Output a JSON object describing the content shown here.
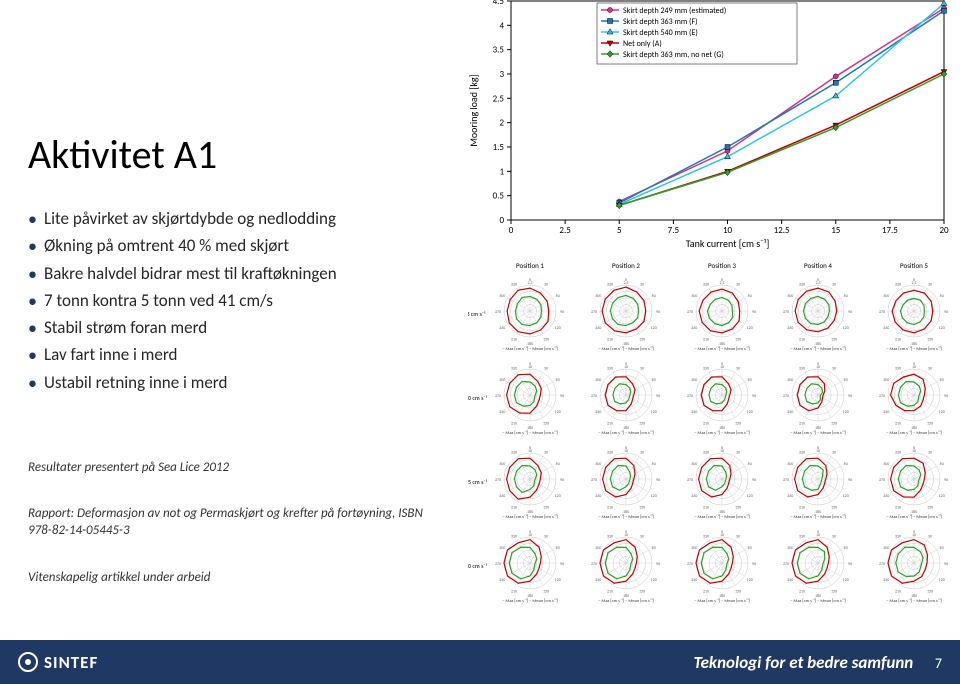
{
  "title": "Aktivitet A1",
  "bullets": [
    "Lite påvirket av skjørtdybde og nedlodding",
    "Økning på omtrent 40 % med skjørt",
    "Bakre halvdel bidrar mest til kraftøkningen",
    "7 tonn kontra 5 tonn ved 41 cm/s",
    "Stabil strøm foran merd",
    "Lav fart inne i merd",
    "Ustabil retning inne i merd"
  ],
  "notes": [
    "Resultater presentert på Sea Lice 2012",
    "Rapport: Deformasjon av not og Permaskjørt og krefter på fortøyning, ISBN 978-82-14-05445-3",
    "Vitenskapelig artikkel under arbeid"
  ],
  "footer": {
    "brand": "SINTEF",
    "tagline": "Teknologi for et bedre samfunn",
    "page": "7"
  },
  "chart": {
    "type": "line",
    "xlabel": "Tank current [cm s⁻¹]",
    "ylabel": "Mooring load [kg]",
    "xlim": [
      0,
      20
    ],
    "ylim": [
      0,
      4.5
    ],
    "xticks": [
      0,
      2.5,
      5,
      7.5,
      10,
      12.5,
      15,
      17.5,
      20
    ],
    "yticks": [
      0,
      0.5,
      1,
      1.5,
      2,
      2.5,
      3,
      3.5,
      4,
      4.5
    ],
    "tick_fontsize": 9,
    "label_fontsize": 10,
    "grid_color": "none",
    "axis_color": "#000000",
    "marker_size": 5,
    "legend_position": "top-right-inside",
    "legend_fontsize": 8,
    "series": [
      {
        "label": "Skirt depth 249 mm (estimated)",
        "color": "#d63384",
        "marker": "circle",
        "x": [
          5,
          10,
          15,
          20
        ],
        "y": [
          0.38,
          1.42,
          2.95,
          4.35
        ]
      },
      {
        "label": "Skirt depth 363 mm (F)",
        "color": "#1f77b4",
        "marker": "square",
        "x": [
          5,
          10,
          15,
          20
        ],
        "y": [
          0.35,
          1.5,
          2.82,
          4.3
        ]
      },
      {
        "label": "Skirt depth 540 mm (E)",
        "color": "#2dc3e8",
        "marker": "triangle",
        "x": [
          5,
          10,
          15,
          20
        ],
        "y": [
          0.32,
          1.3,
          2.55,
          4.45
        ]
      },
      {
        "label": "Net only (A)",
        "color": "#c00000",
        "marker": "triangle-down",
        "x": [
          5,
          10,
          15,
          20
        ],
        "y": [
          0.3,
          1.0,
          1.95,
          3.05
        ]
      },
      {
        "label": "Skirt depth 363 mm, no net (G)",
        "color": "#2ca02c",
        "marker": "diamond",
        "x": [
          5,
          10,
          15,
          20
        ],
        "y": [
          0.3,
          0.98,
          1.9,
          3.0
        ]
      }
    ]
  },
  "polars": {
    "cols": [
      "Position 1",
      "Position 2",
      "Position 3",
      "Position 4",
      "Position 5"
    ],
    "row_labels": [
      "3 cm s⁻¹",
      "10 cm s⁻¹",
      "15 cm s⁻¹",
      "20 cm s⁻¹"
    ],
    "caption": "– Max [cm s⁻¹]   – Mean [cm s⁻¹]",
    "header_fontsize": 7,
    "tick_fontsize": 5,
    "max_color": "#c00000",
    "mean_color": "#2ca02c",
    "ring_color": "#c8c8c8",
    "angles_deg": [
      0,
      30,
      60,
      90,
      120,
      150,
      180,
      210,
      240,
      270,
      300,
      330
    ],
    "rings": [
      2.5,
      5,
      7.5,
      10
    ],
    "cells": [
      [
        {
          "rmax": 2.5,
          "max": [
            2.2,
            2.0,
            1.9,
            1.8,
            2.0,
            2.1,
            2.2,
            2.3,
            2.3,
            2.2,
            2.2,
            2.3
          ],
          "mean": [
            1.4,
            1.3,
            1.2,
            1.1,
            1.2,
            1.3,
            1.4,
            1.5,
            1.5,
            1.4,
            1.4,
            1.5
          ]
        },
        {
          "rmax": 2.5,
          "max": [
            2.3,
            2.1,
            2.0,
            1.9,
            2.0,
            2.0,
            2.1,
            2.2,
            2.3,
            2.3,
            2.3,
            2.3
          ],
          "mean": [
            1.5,
            1.4,
            1.3,
            1.2,
            1.3,
            1.3,
            1.4,
            1.5,
            1.5,
            1.5,
            1.5,
            1.5
          ]
        },
        {
          "rmax": 2.5,
          "max": [
            2.1,
            2.0,
            1.8,
            1.7,
            1.9,
            2.0,
            2.1,
            2.2,
            2.2,
            2.2,
            2.1,
            2.1
          ],
          "mean": [
            1.3,
            1.2,
            1.1,
            1.0,
            1.2,
            1.3,
            1.4,
            1.4,
            1.4,
            1.4,
            1.3,
            1.3
          ]
        },
        {
          "rmax": 2.5,
          "max": [
            2.2,
            2.1,
            1.9,
            1.8,
            1.8,
            1.9,
            2.0,
            2.1,
            2.2,
            2.2,
            2.2,
            2.2
          ],
          "mean": [
            1.4,
            1.3,
            1.2,
            1.1,
            1.1,
            1.2,
            1.3,
            1.4,
            1.4,
            1.4,
            1.4,
            1.4
          ]
        },
        {
          "rmax": 2.5,
          "max": [
            2.0,
            2.0,
            1.9,
            1.8,
            1.9,
            2.0,
            2.1,
            2.1,
            2.1,
            2.1,
            2.0,
            2.0
          ],
          "mean": [
            1.2,
            1.2,
            1.1,
            1.0,
            1.1,
            1.2,
            1.3,
            1.3,
            1.3,
            1.3,
            1.2,
            1.2
          ]
        }
      ],
      [
        {
          "rmax": 10,
          "max": [
            8,
            6,
            5,
            4,
            4,
            5,
            7,
            8,
            9,
            9,
            9,
            9
          ],
          "mean": [
            5,
            4,
            3,
            2,
            2,
            3,
            4,
            5,
            6,
            6,
            6,
            6
          ]
        },
        {
          "rmax": 10,
          "max": [
            7,
            5,
            4,
            3,
            3,
            4,
            6,
            7,
            8,
            8,
            8,
            8
          ],
          "mean": [
            4,
            3,
            2,
            1.5,
            1.5,
            2,
            3,
            4,
            5,
            5,
            5,
            5
          ]
        },
        {
          "rmax": 10,
          "max": [
            7,
            5,
            4,
            3,
            3,
            4,
            6,
            7,
            8,
            8,
            8,
            8
          ],
          "mean": [
            4,
            3,
            2,
            1.5,
            1.5,
            2,
            3,
            4,
            5,
            5,
            5,
            5
          ]
        },
        {
          "rmax": 10,
          "max": [
            7,
            5,
            3,
            2,
            2,
            3,
            5,
            7,
            8,
            8,
            8,
            8
          ],
          "mean": [
            4,
            3,
            2,
            1,
            1,
            2,
            3,
            4,
            5,
            5,
            5,
            5
          ]
        },
        {
          "rmax": 10,
          "max": [
            8,
            7,
            5,
            4,
            4,
            5,
            6,
            7,
            8,
            9,
            9,
            8
          ],
          "mean": [
            5,
            4,
            3,
            2,
            2,
            3,
            4,
            5,
            6,
            6,
            6,
            6
          ]
        }
      ],
      [
        {
          "rmax": 10,
          "max": [
            8,
            6,
            5,
            4,
            4,
            5,
            7,
            9,
            9,
            9,
            9,
            9
          ],
          "mean": [
            5,
            4,
            3,
            2,
            2,
            3,
            4,
            6,
            6,
            6,
            6,
            6
          ]
        },
        {
          "rmax": 10,
          "max": [
            8,
            6,
            4,
            3,
            3,
            4,
            6,
            8,
            9,
            9,
            9,
            9
          ],
          "mean": [
            5,
            3,
            2,
            1.5,
            1.5,
            2,
            3,
            5,
            6,
            6,
            6,
            6
          ]
        },
        {
          "rmax": 10,
          "max": [
            8,
            6,
            4,
            3,
            3,
            4,
            6,
            8,
            9,
            9,
            9,
            9
          ],
          "mean": [
            5,
            3,
            2,
            1.5,
            1.5,
            2,
            3,
            5,
            6,
            6,
            6,
            6
          ]
        },
        {
          "rmax": 10,
          "max": [
            8,
            6,
            4,
            3,
            3,
            4,
            6,
            8,
            9,
            9,
            9,
            9
          ],
          "mean": [
            5,
            4,
            2,
            1.5,
            1.5,
            2,
            4,
            5,
            6,
            6,
            6,
            6
          ]
        },
        {
          "rmax": 10,
          "max": [
            8,
            7,
            5,
            4,
            4,
            5,
            7,
            8,
            9,
            9,
            9,
            9
          ],
          "mean": [
            5,
            4,
            3,
            2,
            2,
            3,
            4,
            5,
            6,
            6,
            6,
            6
          ]
        }
      ],
      [
        {
          "rmax": 10,
          "max": [
            9,
            7,
            5,
            4,
            4,
            5,
            7,
            9,
            10,
            10,
            10,
            9
          ],
          "mean": [
            6,
            4,
            3,
            2,
            2,
            3,
            5,
            7,
            8,
            8,
            8,
            7
          ]
        },
        {
          "rmax": 10,
          "max": [
            9,
            7,
            5,
            4,
            4,
            5,
            7,
            9,
            10,
            10,
            10,
            9
          ],
          "mean": [
            6,
            4,
            3,
            2,
            2,
            3,
            5,
            7,
            8,
            8,
            8,
            7
          ]
        },
        {
          "rmax": 10,
          "max": [
            9,
            7,
            5,
            4,
            4,
            5,
            7,
            9,
            10,
            10,
            10,
            9
          ],
          "mean": [
            6,
            4,
            3,
            2,
            2,
            3,
            5,
            7,
            8,
            8,
            8,
            7
          ]
        },
        {
          "rmax": 10,
          "max": [
            9,
            7,
            5,
            4,
            4,
            5,
            7,
            9,
            10,
            10,
            10,
            9
          ],
          "mean": [
            6,
            5,
            3,
            2,
            2,
            3,
            5,
            7,
            8,
            8,
            8,
            7
          ]
        },
        {
          "rmax": 10,
          "max": [
            9,
            8,
            6,
            5,
            5,
            6,
            7,
            9,
            10,
            10,
            10,
            9
          ],
          "mean": [
            6,
            5,
            4,
            3,
            3,
            4,
            5,
            6,
            7,
            7,
            7,
            7
          ]
        }
      ]
    ]
  }
}
